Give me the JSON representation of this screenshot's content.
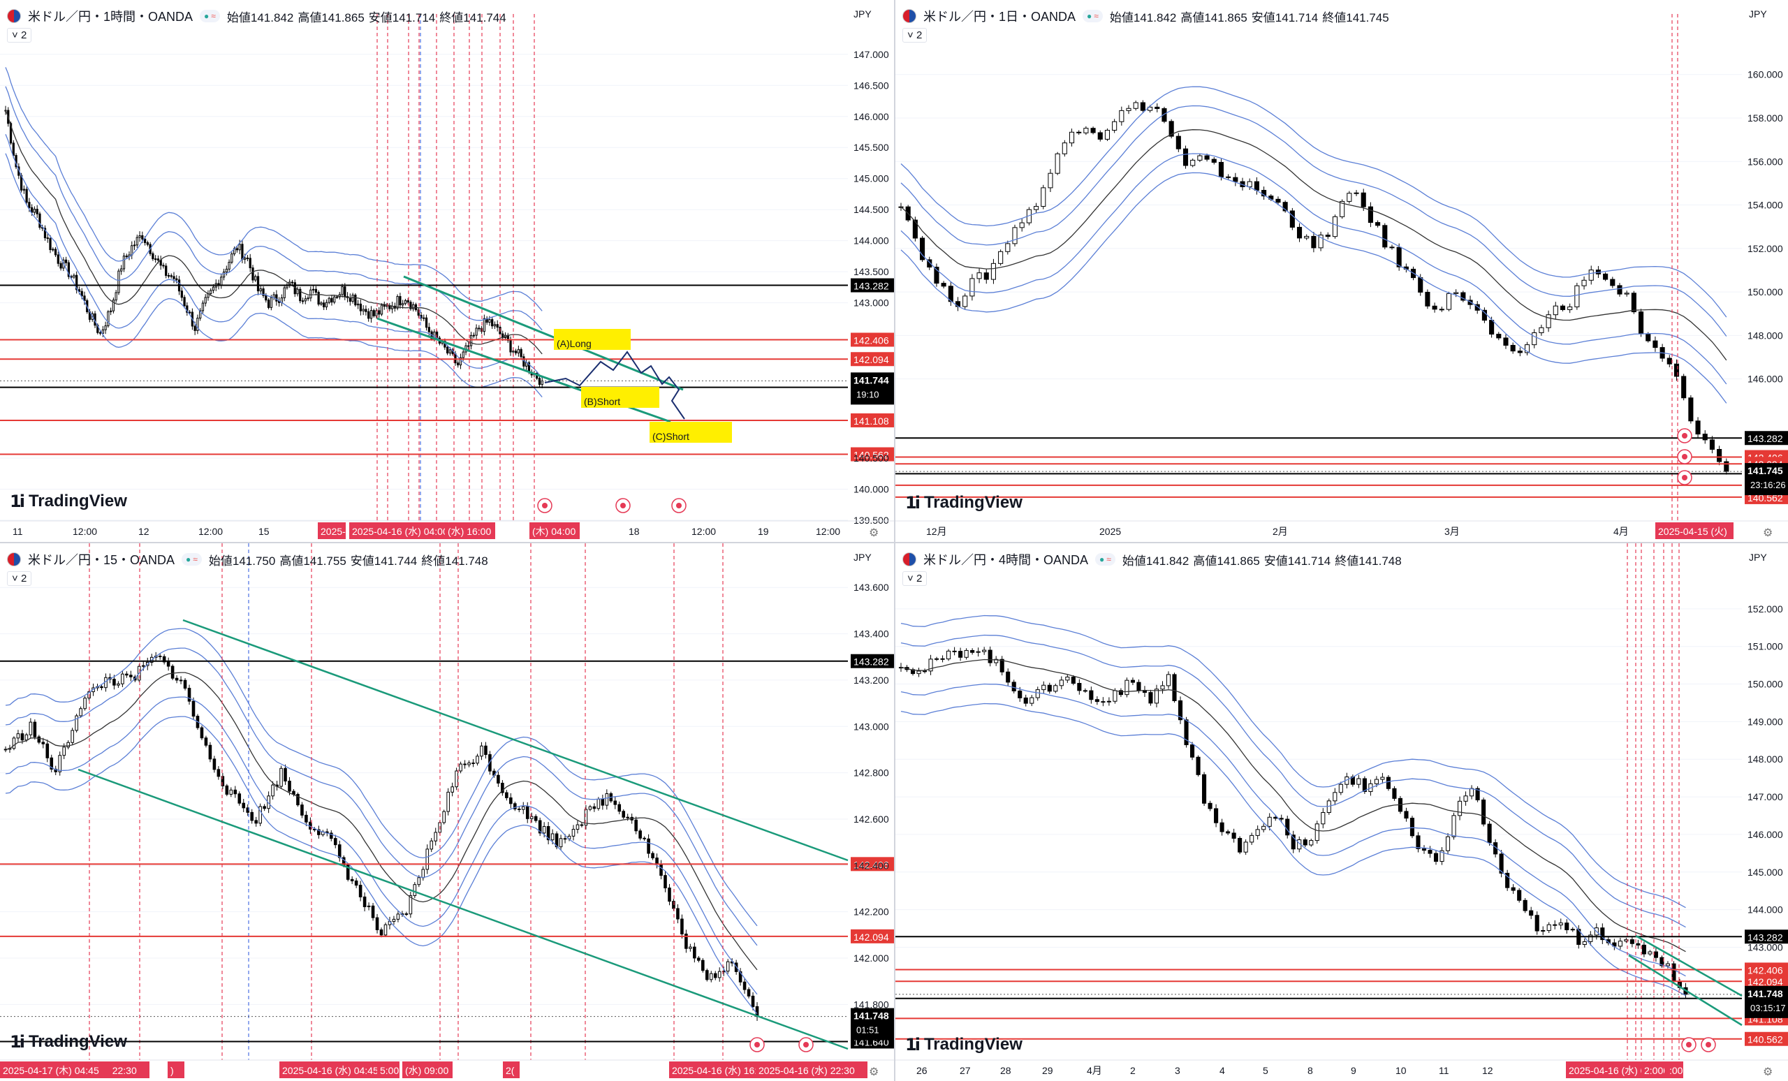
{
  "panels": [
    {
      "id": "h1",
      "symbol": "米ドル／円・1時間・OANDA",
      "ohlc": [
        "始値141.842",
        "高値141.865",
        "安値141.714",
        "終値141.744"
      ],
      "indicator_count": "2",
      "currency": "JPY",
      "logo": "TradingView",
      "last_price": "141.744",
      "countdown": "19:10",
      "time_labels": [
        "11",
        "12:00",
        "12",
        "12:00",
        "15",
        "1",
        "18",
        "12:00",
        "19",
        "12:00"
      ],
      "cursor_time_labels": [
        "2025-",
        "2025-04-16 (水) 04:00",
        "(水) 16:00",
        "(木) 04:00"
      ],
      "annotations": [
        "(A)Long",
        "(B)Short",
        "(C)Short"
      ]
    },
    {
      "id": "d1",
      "symbol": "米ドル／円・1日・OANDA",
      "ohlc": [
        "始値141.842",
        "高値141.865",
        "安値141.714",
        "終値141.745"
      ],
      "indicator_count": "2",
      "currency": "JPY",
      "logo": "TradingView",
      "last_price": "141.745",
      "countdown": "23:16:26",
      "time_labels": [
        "12月",
        "2025",
        "2月",
        "3月",
        "4月"
      ],
      "cursor_time_labels": [
        "2025-04-15 (火)"
      ],
      "annotations": []
    },
    {
      "id": "m15",
      "symbol": "米ドル／円・15・OANDA",
      "ohlc": [
        "始値141.750",
        "高値141.755",
        "安値141.744",
        "終値141.748"
      ],
      "indicator_count": "2",
      "currency": "JPY",
      "logo": "TradingView",
      "last_price": "141.748",
      "countdown": "01:51",
      "time_labels": [
        "09:00"
      ],
      "cursor_time_labels": [
        "2025-04-15 (火) 22:30",
        ")",
        "2025-04-16 (水) 04:45",
        "5:00",
        "(水) 09:00",
        "2(",
        "2025-04-16 (水) 16:00",
        "2025-04-16 (水) 22:30",
        ")",
        "2025-04-17 (木) 04:45"
      ],
      "annotations": []
    },
    {
      "id": "h4",
      "symbol": "米ドル／円・4時間・OANDA",
      "ohlc": [
        "始値141.842",
        "高値141.865",
        "安値141.714",
        "終値141.748"
      ],
      "indicator_count": "2",
      "currency": "JPY",
      "logo": "TradingView",
      "last_price": "141.748",
      "countdown": "03:15:17",
      "time_labels": [
        "26",
        "27",
        "28",
        "29",
        "4月",
        "2",
        "3",
        "4",
        "5",
        "8",
        "9",
        "10",
        "11",
        "12"
      ],
      "cursor_time_labels": [
        "2025-04-16 (水) 02:00",
        "2:00",
        ":00"
      ],
      "annotations": []
    }
  ],
  "colors": {
    "up": "#ffffff",
    "down": "#000000",
    "band": "#5b7fd6",
    "sma": "#333333",
    "support_red": "#e53935",
    "level_black": "#000000",
    "channel": "#1a9a7a",
    "cursor_red": "#e53955",
    "cursor_blue": "#4a6fe3",
    "label_bg_red": "#e53955",
    "annotation_bg": "#ffef00"
  },
  "chart_data": [
    {
      "panel": "h1",
      "type": "candlestick",
      "title": "米ドル／円・1時間・OANDA",
      "ylim": [
        139.5,
        147.2
      ],
      "yticks": [
        147.0,
        146.5,
        146.0,
        145.5,
        145.0,
        144.5,
        144.0,
        143.5,
        143.0,
        140.5,
        140.0,
        139.5
      ],
      "horizontal_levels": [
        {
          "value": 143.282,
          "label": "143.282",
          "color": "black"
        },
        {
          "value": 142.406,
          "label": "142.406",
          "color": "red"
        },
        {
          "value": 142.094,
          "label": "142.094",
          "color": "red"
        },
        {
          "value": 141.64,
          "label": "141.640",
          "color": "black"
        },
        {
          "value": 141.108,
          "label": "141.108",
          "color": "red"
        },
        {
          "value": 140.562,
          "label": "140.562",
          "color": "red"
        }
      ],
      "close_path": [
        146.1,
        145.2,
        144.6,
        144.4,
        144.0,
        143.7,
        143.5,
        143.2,
        142.8,
        142.5,
        142.9,
        143.6,
        143.9,
        144.1,
        143.8,
        143.5,
        143.4,
        143.0,
        142.6,
        143.0,
        143.3,
        143.6,
        143.9,
        143.7,
        143.2,
        143.0,
        143.1,
        143.3,
        143.1,
        143.2,
        143.0,
        143.1,
        143.2,
        143.1,
        142.9,
        142.8,
        142.9,
        143.0,
        143.1,
        142.9,
        142.6,
        142.4,
        142.2,
        142.0,
        142.3,
        142.6,
        142.7,
        142.5,
        142.3,
        142.1,
        141.9,
        141.744
      ]
    },
    {
      "panel": "d1",
      "type": "candlestick",
      "title": "米ドル／円・1日・OANDA",
      "ylim": [
        139.5,
        161.5
      ],
      "yticks": [
        160.0,
        158.0,
        156.0,
        154.0,
        152.0,
        150.0,
        148.0,
        146.0
      ],
      "horizontal_levels": [
        {
          "value": 143.282,
          "label": "143.282",
          "color": "black"
        },
        {
          "value": 142.406,
          "label": "142.406",
          "color": "red"
        },
        {
          "value": 142.094,
          "label": "142.094",
          "color": "red"
        },
        {
          "value": 141.64,
          "label": "141.640",
          "color": "black"
        },
        {
          "value": 141.108,
          "label": "141.108",
          "color": "red"
        },
        {
          "value": 140.562,
          "label": "140.562",
          "color": "red"
        }
      ],
      "close_path": [
        154.2,
        152.5,
        151.0,
        150.0,
        149.6,
        150.4,
        150.8,
        151.8,
        153.0,
        153.6,
        154.8,
        156.2,
        157.4,
        157.8,
        157.2,
        158.0,
        158.4,
        158.6,
        158.4,
        157.2,
        155.7,
        156.1,
        155.7,
        155.3,
        155.0,
        154.7,
        154.2,
        153.9,
        152.6,
        152.0,
        152.8,
        154.0,
        154.5,
        153.4,
        152.2,
        151.4,
        150.5,
        149.6,
        149.3,
        150.1,
        149.4,
        148.6,
        147.6,
        147.0,
        147.6,
        148.5,
        149.2,
        149.6,
        150.6,
        151.0,
        150.2,
        149.8,
        148.0,
        147.3,
        146.6,
        145.2,
        143.4,
        142.8,
        141.745
      ]
    },
    {
      "panel": "m15",
      "type": "candlestick",
      "title": "米ドル／円・15・OANDA",
      "ylim": [
        141.56,
        143.67
      ],
      "yticks": [
        143.6,
        143.4,
        143.2,
        143.0,
        142.8,
        142.6,
        142.4,
        142.2,
        142.0,
        141.8
      ],
      "horizontal_levels": [
        {
          "value": 143.282,
          "label": "143.282",
          "color": "black"
        },
        {
          "value": 142.406,
          "label": "142.406",
          "color": "red"
        },
        {
          "value": 142.094,
          "label": "142.094",
          "color": "red"
        },
        {
          "value": 141.64,
          "label": "141.640",
          "color": "black"
        }
      ],
      "close_path": [
        142.9,
        143.0,
        142.8,
        143.1,
        143.2,
        143.2,
        143.3,
        143.2,
        142.9,
        142.7,
        142.6,
        142.8,
        142.6,
        142.5,
        142.3,
        142.1,
        142.2,
        142.5,
        142.8,
        142.9,
        142.7,
        142.6,
        142.5,
        142.6,
        142.7,
        142.6,
        142.4,
        142.1,
        141.9,
        142.0,
        141.748
      ]
    },
    {
      "panel": "h4",
      "type": "candlestick",
      "title": "米ドル／円・4時間・OANDA",
      "ylim": [
        140.0,
        153.0
      ],
      "yticks": [
        152.0,
        151.0,
        150.0,
        149.0,
        148.0,
        147.0,
        146.0,
        145.0,
        144.0,
        143.0
      ],
      "horizontal_levels": [
        {
          "value": 143.282,
          "label": "143.282",
          "color": "black"
        },
        {
          "value": 142.406,
          "label": "142.406",
          "color": "red"
        },
        {
          "value": 142.094,
          "label": "142.094",
          "color": "red"
        },
        {
          "value": 141.64,
          "label": "141.640",
          "color": "black"
        },
        {
          "value": 141.108,
          "label": "141.108",
          "color": "red"
        },
        {
          "value": 140.562,
          "label": "140.562",
          "color": "red"
        }
      ],
      "close_path": [
        150.6,
        150.3,
        150.6,
        150.8,
        151.0,
        150.7,
        150.1,
        149.6,
        149.8,
        150.2,
        149.9,
        149.5,
        149.8,
        150.0,
        149.6,
        150.2,
        148.4,
        147.0,
        146.0,
        145.7,
        146.2,
        146.6,
        145.6,
        145.9,
        146.8,
        147.6,
        147.2,
        147.6,
        146.6,
        145.6,
        145.2,
        146.5,
        147.3,
        145.8,
        144.6,
        143.9,
        143.4,
        143.6,
        143.2,
        143.5,
        143.1,
        143.0,
        142.9,
        142.5,
        141.748
      ]
    }
  ]
}
